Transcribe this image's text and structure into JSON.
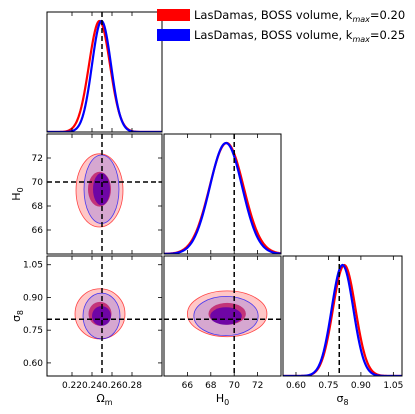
{
  "chart_data": {
    "type": "triangle",
    "parameters": [
      {
        "key": "om",
        "label_html": "Ω<tspan font-size='8' dy='3'>m</tspan>",
        "range": [
          0.195,
          0.31
        ],
        "ticks": [
          0.22,
          0.24,
          0.26,
          0.28
        ],
        "tick_labels": [
          "0.22",
          "0.24",
          "0.26",
          "0.28"
        ],
        "truth": 0.25
      },
      {
        "key": "h0",
        "label_html": "H<tspan font-size='8' dy='3'>0</tspan>",
        "range": [
          64.0,
          74.0
        ],
        "ticks": [
          66,
          68,
          70,
          72
        ],
        "tick_labels": [
          "66",
          "68",
          "70",
          "72"
        ],
        "truth": 70.0
      },
      {
        "key": "s8",
        "label_html": "σ<tspan font-size='8' dy='3'>8</tspan>",
        "range": [
          0.54,
          1.09
        ],
        "ticks": [
          0.6,
          0.75,
          0.9,
          1.05
        ],
        "tick_labels": [
          "0.60",
          "0.75",
          "0.90",
          "1.05"
        ],
        "truth": 0.8
      }
    ],
    "series": [
      {
        "name": "LasDamas, BOSS volume, k<tspan font-size='8' dy='3' font-style='italic'>max</tspan><tspan dy='-3'>=0.20</tspan>",
        "color": "#ff0000",
        "marginals": [
          {
            "mean": 0.2475,
            "sigma": 0.0105
          },
          {
            "mean": 69.35,
            "sigma": 1.45
          },
          {
            "mean": 0.823,
            "sigma": 0.052
          }
        ],
        "contours": [
          {
            "x": "om",
            "y": "h0",
            "inner": {
              "cx": 0.2475,
              "cy": 69.4,
              "rx": 0.0115,
              "ry": 1.45
            },
            "outer": {
              "cx": 0.2475,
              "cy": 69.3,
              "rx": 0.0235,
              "ry": 3.05
            }
          },
          {
            "x": "om",
            "y": "s8",
            "inner": {
              "cx": 0.248,
              "cy": 0.825,
              "rx": 0.0115,
              "ry": 0.055
            },
            "outer": {
              "cx": 0.248,
              "cy": 0.825,
              "rx": 0.025,
              "ry": 0.115
            }
          },
          {
            "x": "h0",
            "y": "s8",
            "inner": {
              "cx": 69.4,
              "cy": 0.825,
              "rx": 1.6,
              "ry": 0.05
            },
            "outer": {
              "cx": 69.4,
              "cy": 0.825,
              "rx": 3.4,
              "ry": 0.105
            }
          }
        ]
      },
      {
        "name": "LasDamas, BOSS volume, k<tspan font-size='8' dy='3' font-style='italic'>max</tspan><tspan dy='-3'>=0.25</tspan>",
        "color": "#0000ff",
        "marginals": [
          {
            "mean": 0.2495,
            "sigma": 0.0095
          },
          {
            "mean": 69.3,
            "sigma": 1.38
          },
          {
            "mean": 0.815,
            "sigma": 0.05
          }
        ],
        "contours": [
          {
            "x": "om",
            "y": "h0",
            "inner": {
              "cx": 0.2495,
              "cy": 69.4,
              "rx": 0.0085,
              "ry": 1.35
            },
            "outer": {
              "cx": 0.2495,
              "cy": 69.4,
              "rx": 0.0175,
              "ry": 2.85
            }
          },
          {
            "x": "om",
            "y": "s8",
            "inner": {
              "cx": 0.2495,
              "cy": 0.815,
              "rx": 0.0095,
              "ry": 0.045
            },
            "outer": {
              "cx": 0.2495,
              "cy": 0.815,
              "rx": 0.0185,
              "ry": 0.105
            }
          },
          {
            "x": "h0",
            "y": "s8",
            "inner": {
              "cx": 69.3,
              "cy": 0.815,
              "rx": 1.35,
              "ry": 0.04
            },
            "outer": {
              "cx": 69.3,
              "cy": 0.815,
              "rx": 2.75,
              "ry": 0.09
            }
          }
        ]
      }
    ],
    "inner_fill": "#6600aa",
    "grid": false,
    "legend_position": "top-right"
  }
}
